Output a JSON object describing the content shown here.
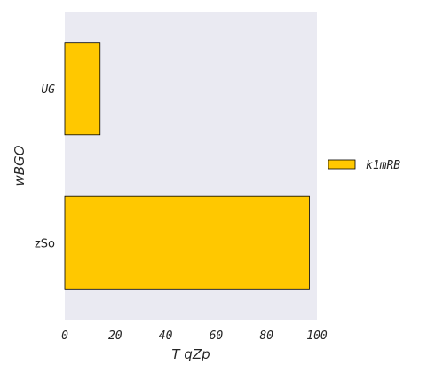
{
  "chart_data": {
    "type": "bar",
    "orientation": "horizontal",
    "categories": [
      "UG",
      "zSo"
    ],
    "series": [
      {
        "name": "k1mRB",
        "values": [
          14,
          97
        ],
        "color": "#ffc800"
      }
    ],
    "xlabel": "T  qZp",
    "ylabel": "wBGO",
    "xlim": [
      0,
      100
    ],
    "xticks": [
      "0",
      "20",
      "40",
      "60",
      "80",
      "100"
    ],
    "grid": false,
    "legend": "right",
    "plot_background": "#eaeaf2"
  }
}
